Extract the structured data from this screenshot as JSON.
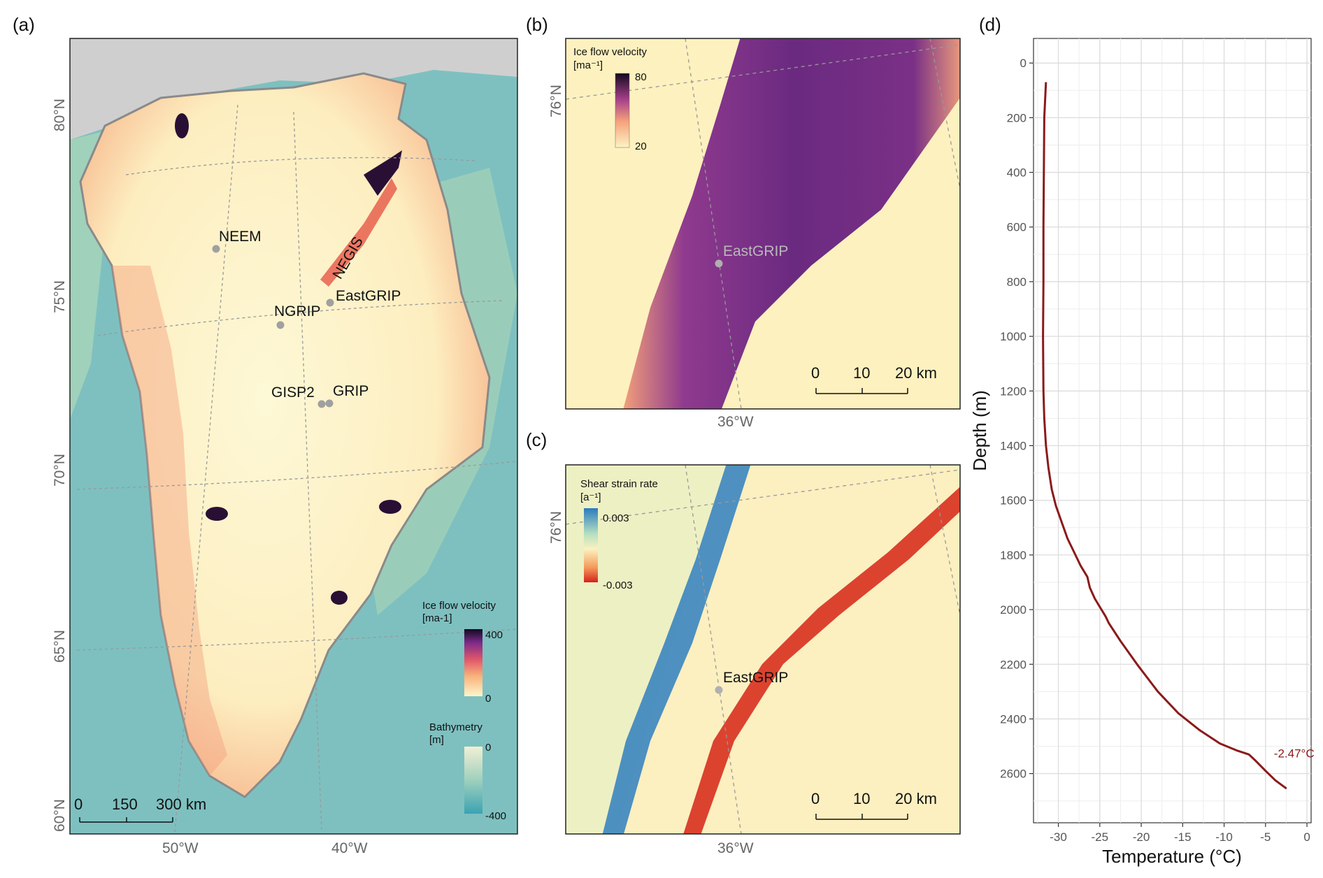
{
  "panel_labels": [
    "(a)",
    "(b)",
    "(c)",
    "(d)"
  ],
  "panel_a": {
    "lat_labels": [
      "80°N",
      "75°N",
      "70°N",
      "65°N",
      "60°N"
    ],
    "lon_labels": [
      "50°W",
      "40°W"
    ],
    "sites": [
      "NEEM",
      "EastGRIP",
      "NGRIP",
      "GISP2",
      "GRIP"
    ],
    "stream_label": "NEGIS",
    "velocity_legend": {
      "title_line1": "Ice flow velocity",
      "title_line2": "[ma-1]",
      "max": "400",
      "min": "0"
    },
    "bathymetry_legend": {
      "title_line1": "Bathymetry",
      "title_line2": "[m]",
      "max": "0",
      "min": "-400"
    },
    "scale_bar": {
      "l0": "0",
      "l1": "150",
      "l2": "300 km"
    },
    "colors": {
      "ocean": "#7fc0c0",
      "ice_low": "#fdf6cc",
      "ice_high": "#1a0b2e",
      "coast": "#888888"
    }
  },
  "panel_b": {
    "legend": {
      "title_line1": "Ice flow velocity",
      "title_line2": "[ma⁻¹]",
      "max": "80",
      "min": "20"
    },
    "lat_label": "76°N",
    "lon_label": "36°W",
    "site": "EastGRIP",
    "scale_bar": {
      "l0": "0",
      "l1": "10",
      "l2": "20 km"
    },
    "colors": {
      "background": "#fdf1bf",
      "stream": "#6a2a7e"
    }
  },
  "panel_c": {
    "legend": {
      "title_line1": "Shear strain rate",
      "title_line2": "[a⁻¹]",
      "max": "0.003",
      "min": "-0.003"
    },
    "lat_label": "76°N",
    "lon_label": "36°W",
    "site": "EastGRIP",
    "scale_bar": {
      "l0": "0",
      "l1": "10",
      "l2": "20 km"
    },
    "colors": {
      "background": "#fcefc0",
      "positive": "#2f7fbf",
      "negative": "#d7301f"
    }
  },
  "chart_data": {
    "type": "line",
    "title": "",
    "xlabel": "Temperature (°C)",
    "ylabel": "Depth (m)",
    "xlim": [
      -33,
      0.5
    ],
    "ylim": [
      2780,
      -90
    ],
    "xticks": [
      -30,
      -25,
      -20,
      -15,
      -10,
      -5,
      0
    ],
    "yticks": [
      0,
      200,
      400,
      600,
      800,
      1000,
      1200,
      1400,
      1600,
      1800,
      2000,
      2200,
      2400,
      2600
    ],
    "grid": true,
    "series": [
      {
        "color": "#8b1a1a",
        "x": [
          -31.5,
          -31.7,
          -31.75,
          -31.8,
          -31.8,
          -31.8,
          -31.85,
          -31.8,
          -31.7,
          -31.5,
          -31.2,
          -30.8,
          -30.3,
          -29.6,
          -28.9,
          -28.1,
          -27.3,
          -26.5,
          -26.2,
          -25.6,
          -24.9,
          -24.3,
          -23.9,
          -22.5,
          -20.5,
          -18.0,
          -15.5,
          -13.0,
          -10.5,
          -8.5,
          -7.0,
          -6.3,
          -5.0,
          -3.8,
          -2.47
        ],
        "y": [
          70,
          200,
          400,
          600,
          700,
          800,
          1000,
          1200,
          1300,
          1400,
          1480,
          1560,
          1620,
          1680,
          1740,
          1790,
          1840,
          1880,
          1920,
          1960,
          1995,
          2025,
          2050,
          2115,
          2200,
          2300,
          2380,
          2440,
          2490,
          2515,
          2530,
          2550,
          2590,
          2625,
          2655
        ]
      }
    ],
    "annotations": [
      {
        "text": "-2.47°C",
        "x": -2.47,
        "y": 2530
      }
    ]
  }
}
